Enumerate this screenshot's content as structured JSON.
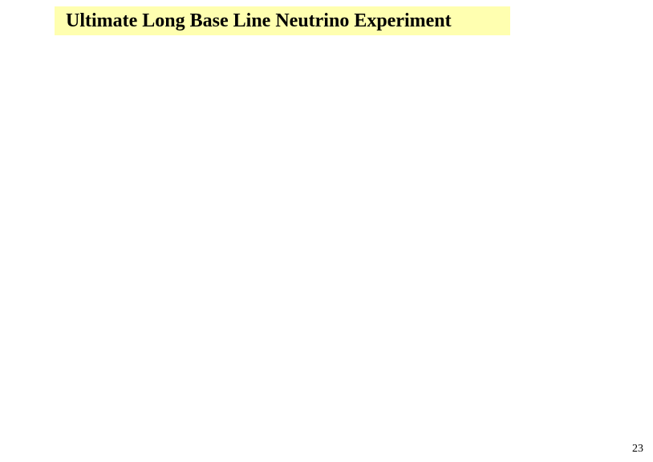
{
  "slide": {
    "title": "Ultimate Long Base Line Neutrino Experiment",
    "page_number": "23",
    "title_background_color": "#ffffb0",
    "title_font_size": 24,
    "title_font_weight": "bold",
    "title_color": "#000000",
    "page_number_font_size": 14,
    "page_number_color": "#000000",
    "background_color": "#ffffff"
  }
}
